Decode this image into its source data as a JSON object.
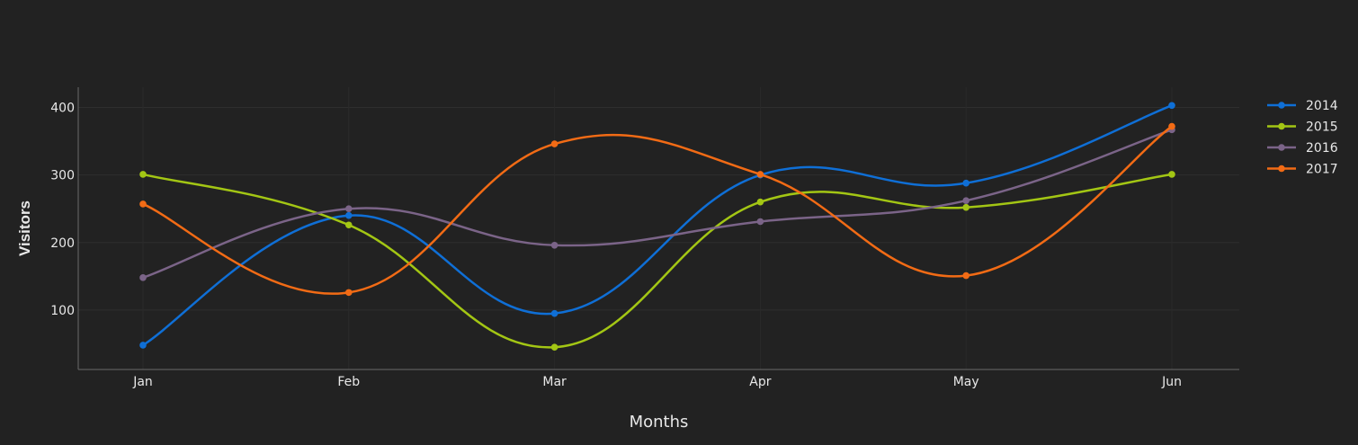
{
  "chart_data": {
    "type": "line",
    "title": "",
    "xlabel": "Months",
    "ylabel": "Visitors",
    "categories": [
      "Jan",
      "Feb",
      "Mar",
      "Apr",
      "May",
      "Jun"
    ],
    "ylim": [
      12,
      430
    ],
    "yticks": [
      100,
      200,
      300,
      400
    ],
    "grid": true,
    "legend_position": "top-right",
    "line_shape": "spline",
    "background": "#222222",
    "series": [
      {
        "name": "2014",
        "color": "#0f6fd6",
        "values": [
          48,
          240,
          95,
          300,
          288,
          403
        ]
      },
      {
        "name": "2015",
        "color": "#a3c614",
        "values": [
          301,
          226,
          45,
          260,
          252,
          301
        ]
      },
      {
        "name": "2016",
        "color": "#7b6488",
        "values": [
          148,
          250,
          196,
          231,
          262,
          367
        ]
      },
      {
        "name": "2017",
        "color": "#f26b15",
        "values": [
          257,
          126,
          346,
          301,
          151,
          372
        ]
      }
    ]
  }
}
